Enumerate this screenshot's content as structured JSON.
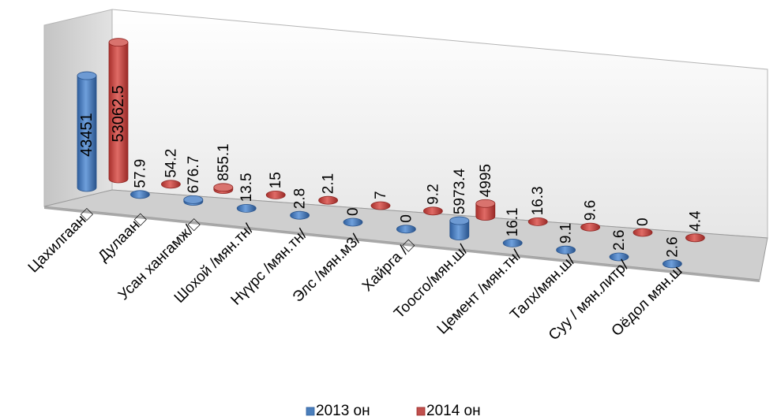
{
  "chart_data": {
    "type": "bar",
    "style": "3d-cylinder",
    "title": "",
    "xlabel": "",
    "ylabel": "",
    "grid": false,
    "legend_position": "bottom",
    "categories": [
      "Цахилгаан□",
      "Дулаан□",
      "Усан хангамж/□",
      "Шохой /мян.тн/",
      "Нүүрс /мян.тн/",
      "Элс /мян.м3/",
      "Хайрга /□",
      "Тоосго/мян.ш/",
      "Цемент /мян.тн/",
      "Талх/мян.ш/",
      "Суу / мян.литр/",
      "Оёдол мян.ш"
    ],
    "series": [
      {
        "name": "2013 он",
        "color": "#4a7ebb",
        "values": [
          43451,
          57.9,
          676.7,
          13.5,
          2.8,
          0,
          0,
          5973.4,
          16.1,
          9.1,
          2.6,
          2.6
        ],
        "labels": [
          "43451",
          "57.9",
          "676.7",
          "13.5",
          "2.8",
          "0",
          "0",
          "5973.4",
          "16.1",
          "9.1",
          "2.6",
          "2.6"
        ]
      },
      {
        "name": "2014 он",
        "color": "#c0504d",
        "values": [
          53062.5,
          54.2,
          855.1,
          15,
          2.1,
          7,
          9.2,
          4995,
          16.3,
          9.6,
          0,
          4.4
        ],
        "labels": [
          "53062.5",
          "54.2",
          "855.1",
          "15",
          "2.1",
          "7",
          "9.2",
          "4995",
          "16.3",
          "9.6",
          "0",
          "4.4"
        ]
      }
    ],
    "ylim": [
      0,
      60000
    ]
  }
}
